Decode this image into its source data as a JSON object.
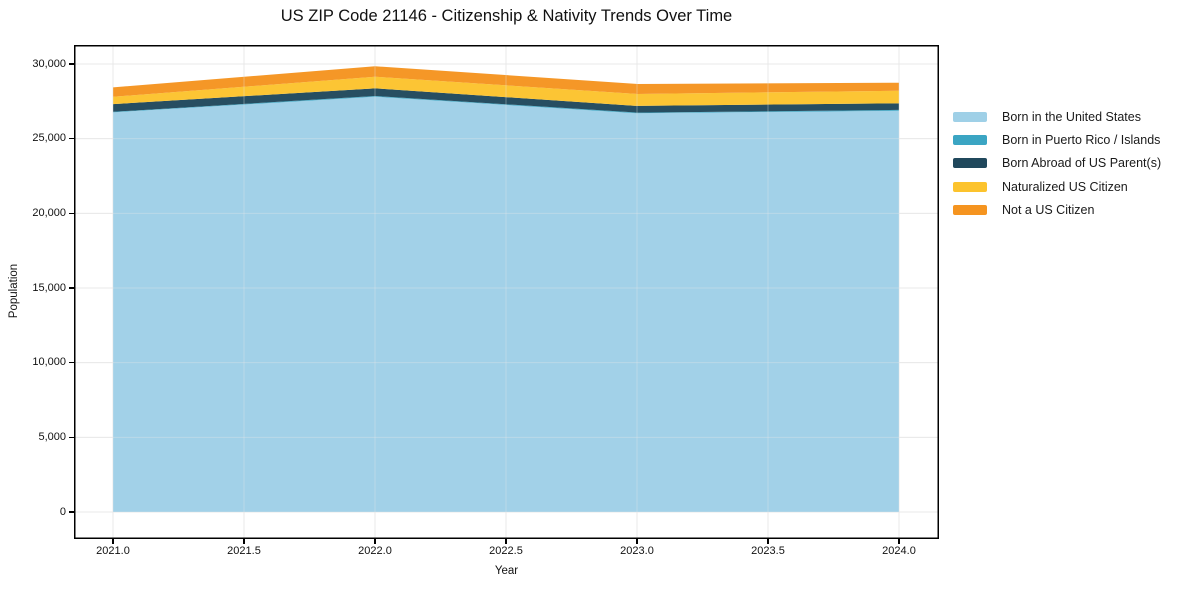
{
  "chart_data": {
    "type": "area",
    "stacked": true,
    "title": "US ZIP Code 21146 - Citizenship & Nativity Trends Over Time",
    "xlabel": "Year",
    "ylabel": "Population",
    "x": [
      2021,
      2022,
      2023,
      2024
    ],
    "series": [
      {
        "name": "Born in the United States",
        "color": "#9fd0e7",
        "values": [
          26760,
          27810,
          26700,
          26870
        ]
      },
      {
        "name": "Born in Puerto Rico / Islands",
        "color": "#3ba5c3",
        "values": [
          40,
          50,
          45,
          55
        ]
      },
      {
        "name": "Born Abroad of US Parent(s)",
        "color": "#20485c",
        "values": [
          515,
          510,
          450,
          440
        ]
      },
      {
        "name": "Naturalized US Citizen",
        "color": "#fcc32d",
        "values": [
          490,
          780,
          800,
          845
        ]
      },
      {
        "name": "Not a US Citizen",
        "color": "#f59420",
        "values": [
          630,
          700,
          670,
          535
        ]
      }
    ],
    "xticks": [
      2021.0,
      2021.5,
      2022.0,
      2022.5,
      2023.0,
      2023.5,
      2024.0
    ],
    "yticks": [
      0,
      5000,
      10000,
      15000,
      20000,
      25000,
      30000
    ],
    "xlim": [
      2020.85,
      2024.15
    ],
    "ylim": [
      -1808,
      31270
    ],
    "grid": true,
    "legend_position": "right"
  },
  "colors": {
    "background": "#ffffff",
    "spine": "#000000",
    "grid": "#e8e8e8",
    "text": "#111111"
  }
}
